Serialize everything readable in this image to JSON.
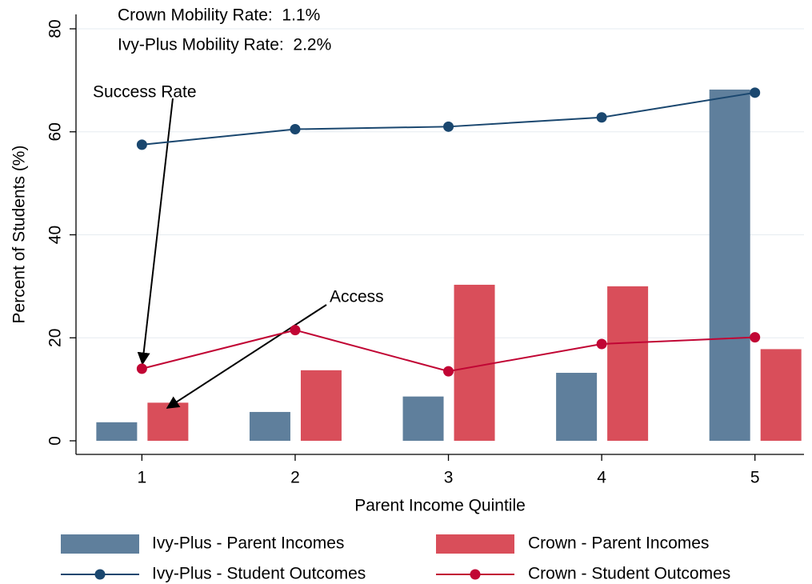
{
  "chart_data": {
    "type": "combo",
    "x_label": "Parent Income Quintile",
    "y_label": "Percent of Students (%)",
    "x": [
      1,
      2,
      3,
      4,
      5
    ],
    "xlim": [
      0.57,
      5.32
    ],
    "xticks": [
      1,
      2,
      3,
      4,
      5
    ],
    "ylim": [
      0,
      80
    ],
    "yticks": [
      0,
      20,
      40,
      60,
      80
    ],
    "grid": true,
    "annotations": [
      "Crown Mobility Rate:  1.1%",
      "Ivy-Plus Mobility Rate:  2.2%",
      "Success Rate",
      "Access"
    ],
    "series": [
      {
        "name": "Ivy-Plus - Parent Incomes",
        "type": "bar",
        "color": "#5f7f9c",
        "values": [
          3.6,
          5.6,
          8.6,
          13.2,
          68.2
        ]
      },
      {
        "name": "Crown - Parent Incomes",
        "type": "bar",
        "color": "#d94e5a",
        "values": [
          7.4,
          13.7,
          30.3,
          30.0,
          17.8
        ]
      },
      {
        "name": "Ivy-Plus - Student Outcomes",
        "type": "line",
        "color": "#1a476f",
        "values": [
          57.5,
          60.5,
          61.0,
          62.8,
          67.6
        ]
      },
      {
        "name": "Crown - Student Outcomes",
        "type": "line",
        "color": "#c10534",
        "values": [
          14.0,
          21.5,
          13.5,
          18.8,
          20.1
        ]
      }
    ]
  }
}
